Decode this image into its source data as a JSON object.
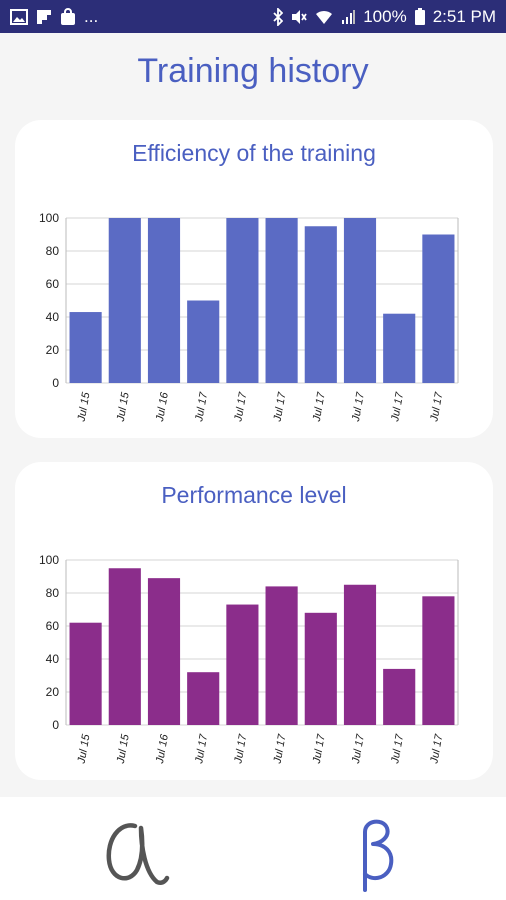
{
  "status_bar": {
    "battery": "100%",
    "time": "2:51 PM",
    "ellipsis": "..."
  },
  "page": {
    "title": "Training history"
  },
  "colors": {
    "status_bar": "#2c2e78",
    "title": "#4a5fc1",
    "efficiency_bars": "#5b6bc4",
    "performance_bars": "#8b2d8b",
    "alpha_icon": "#555555",
    "beta_icon": "#4a5fc1"
  },
  "bottom_nav": {
    "items": [
      {
        "icon": "alpha-icon"
      },
      {
        "icon": "beta-icon"
      }
    ]
  },
  "chart_data": [
    {
      "type": "bar",
      "title": "Efficiency of the training",
      "categories": [
        "Jul 15",
        "Jul 15",
        "Jul 16",
        "Jul 17",
        "Jul 17",
        "Jul 17",
        "Jul 17",
        "Jul 17",
        "Jul 17",
        "Jul 17"
      ],
      "values": [
        43,
        100,
        100,
        50,
        100,
        100,
        95,
        100,
        42,
        90
      ],
      "ylim": [
        0,
        100
      ],
      "yticks": [
        "0",
        "20",
        "40",
        "60",
        "80",
        "100"
      ],
      "grid": true,
      "legend": "none"
    },
    {
      "type": "bar",
      "title": "Performance level",
      "categories": [
        "Jul 15",
        "Jul 15",
        "Jul 16",
        "Jul 17",
        "Jul 17",
        "Jul 17",
        "Jul 17",
        "Jul 17",
        "Jul 17",
        "Jul 17"
      ],
      "values": [
        62,
        95,
        89,
        32,
        73,
        84,
        68,
        85,
        34,
        78
      ],
      "ylim": [
        0,
        100
      ],
      "yticks": [
        "0",
        "20",
        "40",
        "60",
        "80",
        "100"
      ],
      "grid": true,
      "legend": "none"
    }
  ]
}
